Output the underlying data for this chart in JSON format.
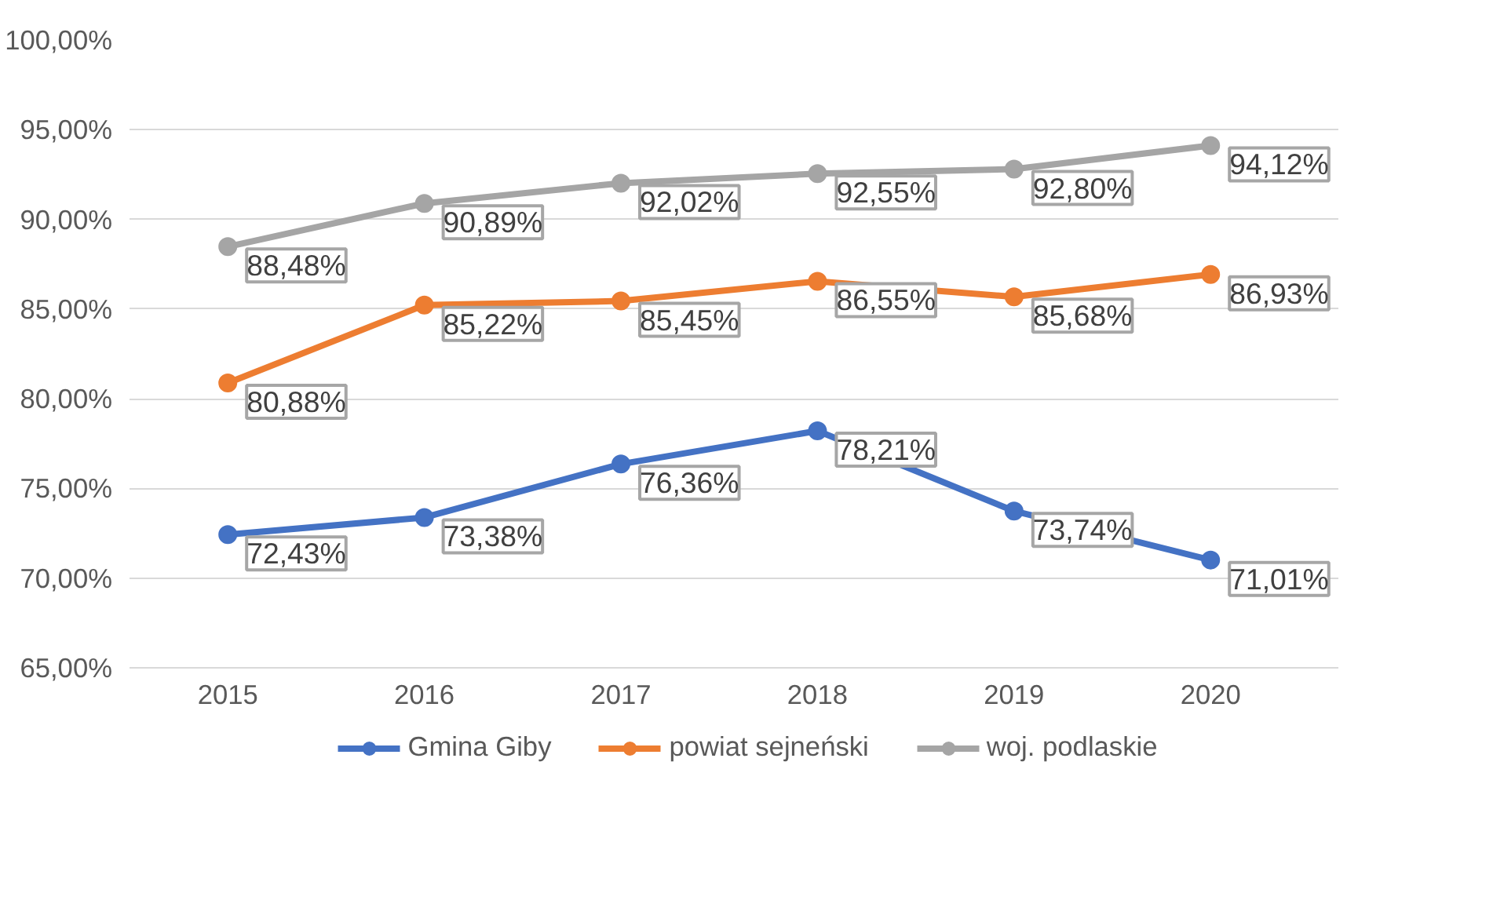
{
  "chart_data": {
    "type": "line",
    "categories": [
      "2015",
      "2016",
      "2017",
      "2018",
      "2019",
      "2020"
    ],
    "series": [
      {
        "name": "Gmina Giby",
        "color": "#4472c4",
        "values": [
          72.43,
          73.38,
          76.36,
          78.21,
          73.74,
          71.01
        ],
        "value_labels": [
          "72,43%",
          "73,38%",
          "76,36%",
          "78,21%",
          "73,74%",
          "71,01%"
        ]
      },
      {
        "name": "powiat sejneński",
        "color": "#ed7d31",
        "values": [
          80.88,
          85.22,
          85.45,
          86.55,
          85.68,
          86.93
        ],
        "value_labels": [
          "80,88%",
          "85,22%",
          "85,45%",
          "86,55%",
          "85,68%",
          "86,93%"
        ]
      },
      {
        "name": "woj. podlaskie",
        "color": "#a5a5a5",
        "values": [
          88.48,
          90.89,
          92.02,
          92.55,
          92.8,
          94.12
        ],
        "value_labels": [
          "88,48%",
          "90,89%",
          "92,02%",
          "92,55%",
          "92,80%",
          "94,12%"
        ]
      }
    ],
    "ylim": [
      65,
      100
    ],
    "yticks": [
      {
        "value": 65,
        "label": "65,00%"
      },
      {
        "value": 70,
        "label": "70,00%"
      },
      {
        "value": 75,
        "label": "75,00%"
      },
      {
        "value": 80,
        "label": "80,00%"
      },
      {
        "value": 85,
        "label": "85,00%"
      },
      {
        "value": 90,
        "label": "90,00%"
      },
      {
        "value": 95,
        "label": "95,00%"
      },
      {
        "value": 100,
        "label": "100,00%"
      }
    ],
    "grid": "y",
    "legend": "bottom",
    "marker": "circle",
    "line_style": "solid"
  }
}
